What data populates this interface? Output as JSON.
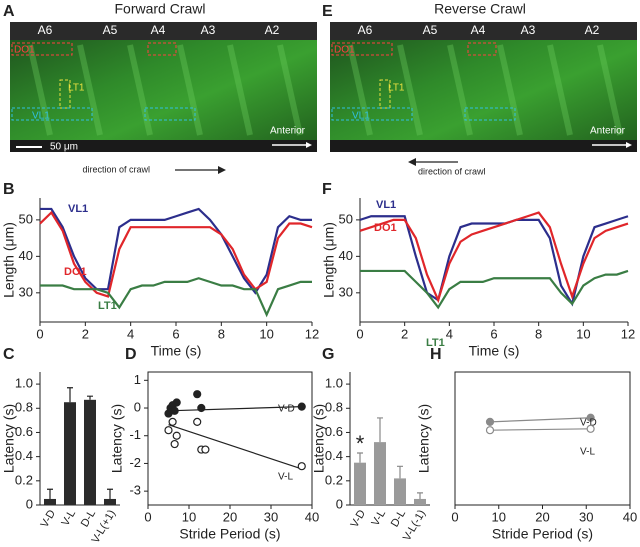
{
  "images": [
    {
      "panel": "A",
      "title": "Forward Crawl",
      "segments": [
        "A6",
        "A5",
        "A4",
        "A3",
        "A2"
      ],
      "rois": [
        "DO1",
        "LT1",
        "VL1"
      ],
      "anterior": "Anterior",
      "scale_bar": "50 μm",
      "caption": "direction of crawl"
    },
    {
      "panel": "E",
      "title": "Reverse Crawl",
      "segments": [
        "A6",
        "A5",
        "A4",
        "A3",
        "A2"
      ],
      "rois": [
        "DO1",
        "LT1",
        "VL1"
      ],
      "anterior": "Anterior",
      "caption": "direction of crawl"
    }
  ],
  "chart_data": [
    {
      "type": "line",
      "panel": "B",
      "xlabel": "Time (s)",
      "ylabel": "Length (μm)",
      "x": [
        0,
        0.5,
        1,
        1.5,
        2,
        2.5,
        3,
        3.5,
        4,
        4.5,
        5,
        5.5,
        6,
        6.5,
        7,
        7.5,
        8,
        8.5,
        9,
        9.5,
        10,
        10.5,
        11,
        11.5,
        12
      ],
      "series": [
        {
          "name": "VL1",
          "color": "#2c2e8c",
          "values": [
            53,
            53,
            48,
            40,
            34,
            31,
            31,
            48,
            50,
            50,
            50,
            50,
            51,
            52,
            53,
            50,
            46,
            40,
            34,
            30,
            35,
            48,
            51,
            50,
            50
          ]
        },
        {
          "name": "DO1",
          "color": "#e0262a",
          "values": [
            49,
            52,
            47,
            38,
            33,
            30,
            29,
            42,
            48,
            48,
            48,
            48,
            48,
            48,
            48,
            48,
            46,
            42,
            35,
            31,
            33,
            45,
            49,
            49,
            48
          ]
        },
        {
          "name": "LT1",
          "color": "#3a7d44",
          "values": [
            32,
            32,
            32,
            31,
            31,
            31,
            30,
            26,
            31,
            32,
            32,
            33,
            33,
            33,
            34,
            33,
            32,
            32,
            31,
            31,
            24,
            31,
            32,
            33,
            33
          ]
        }
      ],
      "xlim": [
        0,
        12
      ],
      "xticks": [
        0,
        2,
        4,
        6,
        8,
        10,
        12
      ],
      "ylim": [
        22,
        56
      ],
      "yticks": [
        30,
        40,
        50
      ]
    },
    {
      "type": "line",
      "panel": "F",
      "xlabel": "Time (s)",
      "ylabel": "Length (μm)",
      "x": [
        0,
        0.5,
        1,
        1.5,
        2,
        2.5,
        3,
        3.5,
        4,
        4.5,
        5,
        5.5,
        6,
        6.5,
        7,
        7.5,
        8,
        8.5,
        9,
        9.5,
        10,
        10.5,
        11,
        11.5,
        12
      ],
      "series": [
        {
          "name": "VL1",
          "color": "#2c2e8c",
          "values": [
            50,
            51,
            51,
            51,
            51,
            40,
            30,
            28,
            40,
            48,
            49,
            49,
            49,
            49,
            50,
            50,
            50,
            45,
            32,
            27,
            40,
            48,
            49,
            50,
            51
          ]
        },
        {
          "name": "DO1",
          "color": "#e0262a",
          "values": [
            47,
            48,
            49,
            50,
            50,
            45,
            35,
            28,
            38,
            44,
            46,
            47,
            48,
            49,
            50,
            51,
            52,
            48,
            38,
            29,
            38,
            45,
            47,
            48,
            49
          ]
        },
        {
          "name": "LT1",
          "color": "#3a7d44",
          "values": [
            36,
            36,
            36,
            36,
            36,
            33,
            30,
            26,
            31,
            33,
            33,
            33,
            34,
            34,
            34,
            34,
            34,
            34,
            30,
            27,
            32,
            34,
            35,
            35,
            36
          ]
        }
      ],
      "xlim": [
        0,
        12
      ],
      "xticks": [
        0,
        2,
        4,
        6,
        8,
        10,
        12
      ],
      "ylim": [
        22,
        56
      ],
      "yticks": [
        30,
        40,
        50
      ]
    },
    {
      "type": "bar",
      "panel": "C",
      "ylabel": "Latency (s)",
      "categories": [
        "V-D",
        "V-L",
        "D-L",
        "V-L(+1)"
      ],
      "values": [
        0.05,
        0.85,
        0.87,
        0.05
      ],
      "errors": [
        0.08,
        0.12,
        0.03,
        0.08
      ],
      "color": "#2b2b2b",
      "ylim": [
        0,
        1.1
      ],
      "yticks": [
        0,
        0.2,
        0.4,
        0.6,
        0.8,
        {
          "value": 1,
          "label": "1.0"
        }
      ]
    },
    {
      "type": "scatter",
      "panel": "D",
      "xlabel": "Stride Period (s)",
      "ylabel": "Latency (s)",
      "series": [
        {
          "name": "V-D",
          "color": "#222222",
          "marker": "filled",
          "x": [
            5,
            5.5,
            6,
            6.5,
            7,
            12,
            13,
            37.5
          ],
          "values": [
            -0.2,
            0,
            0.1,
            -0.1,
            0.2,
            0.5,
            0,
            0.05
          ],
          "fit_x": [
            5,
            37.5
          ],
          "fit_values": [
            -0.1,
            0.05
          ]
        },
        {
          "name": "V-L",
          "color": "#222222",
          "marker": "open",
          "x": [
            5,
            6,
            6.5,
            7,
            12,
            13,
            14,
            37.5
          ],
          "values": [
            -0.8,
            -0.5,
            -1.3,
            -1,
            -0.5,
            -1.5,
            -1.5,
            -2.1
          ],
          "fit_x": [
            5,
            37.5
          ],
          "fit_values": [
            -0.6,
            -2.2
          ]
        }
      ],
      "xlim": [
        0,
        40
      ],
      "xticks": [
        0,
        10,
        20,
        30,
        40
      ],
      "ylim": [
        -3.5,
        1.3
      ],
      "yticks": [
        1,
        0,
        -1,
        -2,
        -3
      ]
    },
    {
      "type": "bar",
      "panel": "G",
      "ylabel": "Latency (s)",
      "categories": [
        "V-D",
        "V-L",
        "D-L",
        "V-L(-1)"
      ],
      "values": [
        0.35,
        0.52,
        0.22,
        0.05
      ],
      "errors": [
        0.08,
        0.2,
        0.1,
        0.05
      ],
      "color": "#9a9a9a",
      "annotation": "*",
      "ylim": [
        0,
        1.1
      ],
      "yticks": [
        0,
        0.2,
        0.4,
        0.6,
        0.8,
        {
          "value": 1,
          "label": "1.0"
        }
      ]
    },
    {
      "type": "scatter",
      "panel": "H",
      "xlabel": "Stride Period (s)",
      "ylabel": "Latency (s)",
      "series": [
        {
          "name": "V-D",
          "color": "#8a8a8a",
          "marker": "filled",
          "x": [
            8,
            31
          ],
          "values": [
            -0.5,
            -0.35
          ],
          "fit_x": [
            8,
            31
          ],
          "fit_values": [
            -0.5,
            -0.35
          ]
        },
        {
          "name": "V-L",
          "color": "#8a8a8a",
          "marker": "open",
          "x": [
            8,
            31
          ],
          "values": [
            -0.8,
            -0.75
          ],
          "fit_x": [
            8,
            31
          ],
          "fit_values": [
            -0.8,
            -0.75
          ]
        }
      ],
      "xlim": [
        0,
        40
      ],
      "xticks": [
        0,
        10,
        20,
        30,
        40
      ],
      "ylim": [
        -3.5,
        1.3
      ]
    }
  ]
}
